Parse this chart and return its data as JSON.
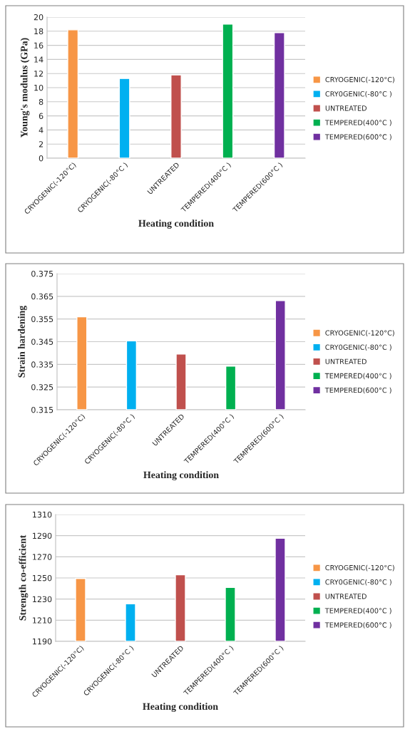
{
  "chart_data": [
    {
      "type": "bar",
      "xlabel": "Heating condition",
      "ylabel": "Young's modulus (GPa)",
      "categories": [
        "CRYOGENIC(-120°C)",
        "CRYOGENIC(-80°C )",
        "UNTREATED",
        "TEMPERED(400°C )",
        "TEMPERED(600°C )"
      ],
      "series": [
        {
          "name": "CRYOGENIC(-120°C)",
          "color": "#f79646",
          "values": [
            18.2,
            null,
            null,
            null,
            null
          ]
        },
        {
          "name": "CRY0GENIC(-80°C )",
          "color": "#00b0f0",
          "values": [
            null,
            11.3,
            null,
            null,
            null
          ]
        },
        {
          "name": "UNTREATED",
          "color": "#c0504d",
          "values": [
            null,
            null,
            11.8,
            null,
            null
          ]
        },
        {
          "name": "TEMPERED(400°C )",
          "color": "#00b050",
          "values": [
            null,
            null,
            null,
            19.0,
            null
          ]
        },
        {
          "name": "TEMPERED(600°C )",
          "color": "#7030a0",
          "values": [
            null,
            null,
            null,
            null,
            17.8
          ]
        }
      ],
      "ylim": [
        0,
        20
      ],
      "yticks": [
        0,
        2,
        4,
        6,
        8,
        10,
        12,
        14,
        16,
        18,
        20
      ],
      "grid": "y",
      "legend": "right"
    },
    {
      "type": "bar",
      "xlabel": "Heating condition",
      "ylabel": "Strain hardening",
      "categories": [
        "CRYOGENIC(-120°C)",
        "CRYOGENIC(-80°C )",
        "UNTREATED",
        "TEMPERED(400°C )",
        "TEMPERED(600°C )"
      ],
      "series": [
        {
          "name": "CRYOGENIC(-120°C)",
          "color": "#f79646",
          "values": [
            0.356,
            null,
            null,
            null,
            null
          ]
        },
        {
          "name": "CRY0GENIC(-80°C )",
          "color": "#00b0f0",
          "values": [
            null,
            0.3454,
            null,
            null,
            null
          ]
        },
        {
          "name": "UNTREATED",
          "color": "#c0504d",
          "values": [
            null,
            null,
            0.3396,
            null,
            null
          ]
        },
        {
          "name": "TEMPERED(400°C )",
          "color": "#00b050",
          "values": [
            null,
            null,
            null,
            0.3342,
            null
          ]
        },
        {
          "name": "TEMPERED(600°C )",
          "color": "#7030a0",
          "values": [
            null,
            null,
            null,
            null,
            0.3631
          ]
        }
      ],
      "ylim": [
        0.315,
        0.375
      ],
      "yticks": [
        {
          "value": 0.315,
          "label": "0.315"
        },
        {
          "value": 0.325,
          "label": "0.325"
        },
        {
          "value": 0.335,
          "label": "0.335"
        },
        {
          "value": 0.345,
          "label": "0.345"
        },
        {
          "value": 0.355,
          "label": "0.355"
        },
        {
          "value": 0.365,
          "label": "0.365"
        },
        {
          "value": 0.375,
          "label": "0.375"
        }
      ],
      "grid": "y",
      "legend": "right"
    },
    {
      "type": "bar",
      "xlabel": "Heating condition",
      "ylabel": "Strength co-efficient",
      "categories": [
        "CRYOGENIC(-120°C)",
        "CRYOGENIC(-80°C )",
        "UNTREATED",
        "TEMPERED(400°C )",
        "TEMPERED(600°C )"
      ],
      "series": [
        {
          "name": "CRYOGENIC(-120°C)",
          "color": "#f79646",
          "values": [
            1249.5,
            null,
            null,
            null,
            null
          ]
        },
        {
          "name": "CRY0GENIC(-80°C )",
          "color": "#00b0f0",
          "values": [
            null,
            1225.5,
            null,
            null,
            null
          ]
        },
        {
          "name": "UNTREATED",
          "color": "#c0504d",
          "values": [
            null,
            null,
            1253,
            null,
            null
          ]
        },
        {
          "name": "TEMPERED(400°C )",
          "color": "#00b050",
          "values": [
            null,
            null,
            null,
            1241,
            null
          ]
        },
        {
          "name": "TEMPERED(600°C )",
          "color": "#7030a0",
          "values": [
            null,
            null,
            null,
            null,
            1287.5
          ]
        }
      ],
      "ylim": [
        1190,
        1310
      ],
      "yticks": [
        1190,
        1210,
        1230,
        1250,
        1270,
        1290,
        1310
      ],
      "grid": "y",
      "legend": "right"
    }
  ]
}
